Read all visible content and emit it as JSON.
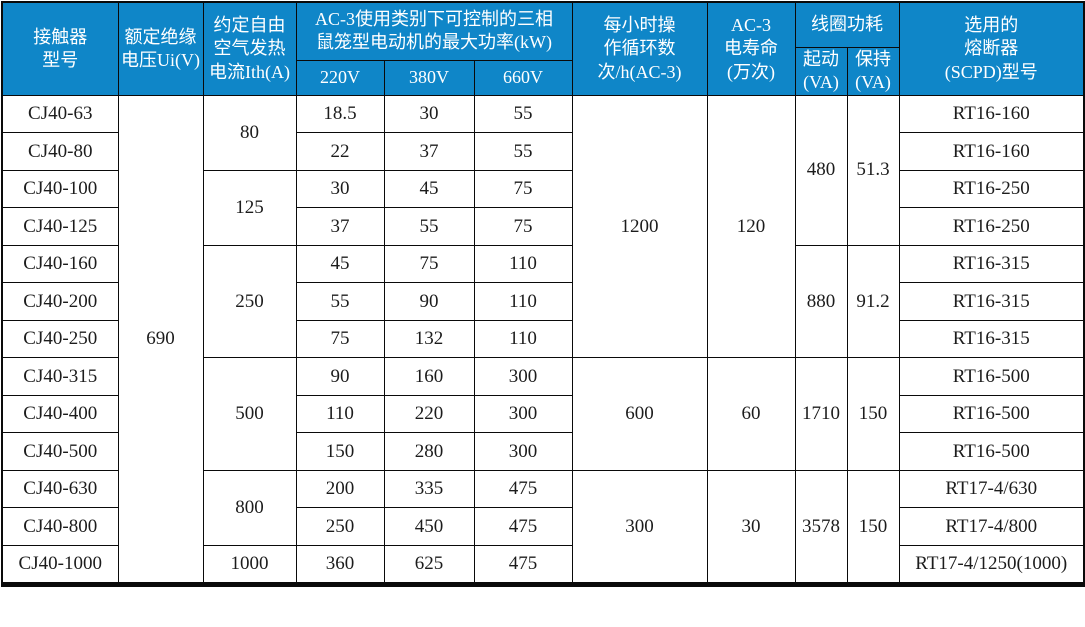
{
  "theme": {
    "header_bg": "#0f86c8",
    "header_text": "#ffffff",
    "body_text": "#1c1c1c",
    "border": "#0a0a0a",
    "body_bg": "#ffffff"
  },
  "table": {
    "header": {
      "model": "接触器\n型号",
      "insulation_voltage": "额定绝缘\n电压Ui(V)",
      "thermal_current": "约定自由\n空气发热\n电流Ith(A)",
      "max_power_group": "AC-3使用类别下可控制的三相\n鼠笼型电动机的最大功率(kW)",
      "max_power_sub": [
        "220V",
        "380V",
        "660V"
      ],
      "cycles_per_hour": "每小时操\n作循环数\n次/h(AC-3)",
      "electrical_life": "AC-3\n电寿命\n(万次)",
      "coil_power_group": "线圈功耗",
      "coil_power_sub": [
        "起动\n(VA)",
        "保持\n(VA)"
      ],
      "fuse": "选用的\n熔断器\n(SCPD)型号"
    },
    "rows": [
      [
        "CJ40-63",
        {
          "t": "690",
          "rs": 13
        },
        {
          "t": "80",
          "rs": 2
        },
        "18.5",
        "30",
        "55",
        {
          "t": "1200",
          "rs": 7
        },
        {
          "t": "120",
          "rs": 7
        },
        {
          "t": "480",
          "rs": 4
        },
        {
          "t": "51.3",
          "rs": 4
        },
        "RT16-160"
      ],
      [
        "CJ40-80",
        "22",
        "37",
        "55",
        "RT16-160"
      ],
      [
        "CJ40-100",
        {
          "t": "125",
          "rs": 2
        },
        "30",
        "45",
        "75",
        "RT16-250"
      ],
      [
        "CJ40-125",
        "37",
        "55",
        "75",
        "RT16-250"
      ],
      [
        "CJ40-160",
        {
          "t": "250",
          "rs": 3
        },
        "45",
        "75",
        "110",
        {
          "t": "880",
          "rs": 3
        },
        {
          "t": "91.2",
          "rs": 3
        },
        "RT16-315"
      ],
      [
        "CJ40-200",
        "55",
        "90",
        "110",
        "RT16-315"
      ],
      [
        "CJ40-250",
        "75",
        "132",
        "110",
        "RT16-315"
      ],
      [
        "CJ40-315",
        {
          "t": "500",
          "rs": 3
        },
        "90",
        "160",
        "300",
        {
          "t": "600",
          "rs": 3
        },
        {
          "t": "60",
          "rs": 3
        },
        {
          "t": "1710",
          "rs": 3
        },
        {
          "t": "150",
          "rs": 3
        },
        "RT16-500"
      ],
      [
        "CJ40-400",
        "110",
        "220",
        "300",
        "RT16-500"
      ],
      [
        "CJ40-500",
        "150",
        "280",
        "300",
        "RT16-500"
      ],
      [
        "CJ40-630",
        {
          "t": "800",
          "rs": 2
        },
        "200",
        "335",
        "475",
        {
          "t": "300",
          "rs": 3
        },
        {
          "t": "30",
          "rs": 3
        },
        {
          "t": "3578",
          "rs": 3
        },
        {
          "t": "150",
          "rs": 3
        },
        "RT17-4/630"
      ],
      [
        "CJ40-800",
        "250",
        "450",
        "475",
        "RT17-4/800"
      ],
      [
        "CJ40-1000",
        "1000",
        "360",
        "625",
        "475",
        "RT17-4/1250(1000)"
      ]
    ]
  }
}
